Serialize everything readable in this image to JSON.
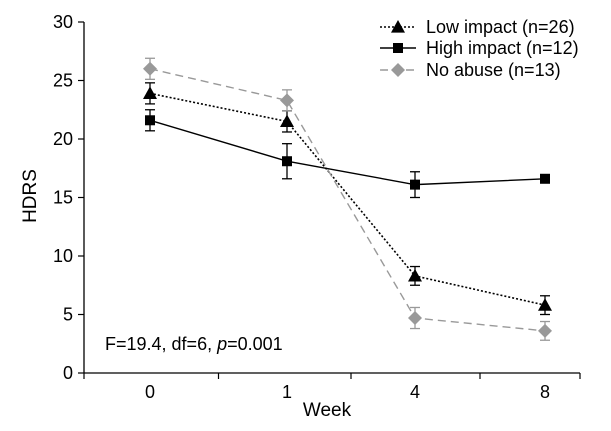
{
  "chart_data": {
    "type": "line",
    "title": "",
    "xlabel": "Week",
    "ylabel": "HDRS",
    "categories": [
      "0",
      "1",
      "4",
      "8"
    ],
    "x_ticks": [
      "0",
      "1",
      "4",
      "8"
    ],
    "y_ticks": [
      "0",
      "5",
      "10",
      "15",
      "20",
      "25",
      "30"
    ],
    "ylim": [
      0,
      30
    ],
    "grid": false,
    "legend_position": "top-right",
    "annotation": {
      "prefix": "F=19.4, df=6, ",
      "p_symbol": "p",
      "suffix": "=0.001"
    },
    "series": [
      {
        "name": "Low impact (n=26)",
        "values": [
          23.9,
          21.5,
          8.3,
          5.8
        ],
        "errors": [
          0.9,
          0.9,
          0.8,
          0.8
        ],
        "marker": "triangle",
        "line_style": "dotted",
        "color": "#000000"
      },
      {
        "name": "High impact (n=12)",
        "values": [
          21.6,
          18.1,
          16.1,
          16.6
        ],
        "errors": [
          0.9,
          1.5,
          1.1,
          0.0
        ],
        "marker": "square",
        "line_style": "solid",
        "color": "#000000"
      },
      {
        "name": "No abuse (n=13)",
        "values": [
          26.0,
          23.3,
          4.7,
          3.6
        ],
        "errors": [
          0.9,
          0.9,
          0.9,
          0.8
        ],
        "marker": "diamond",
        "line_style": "dashed",
        "color": "#999999"
      }
    ]
  }
}
